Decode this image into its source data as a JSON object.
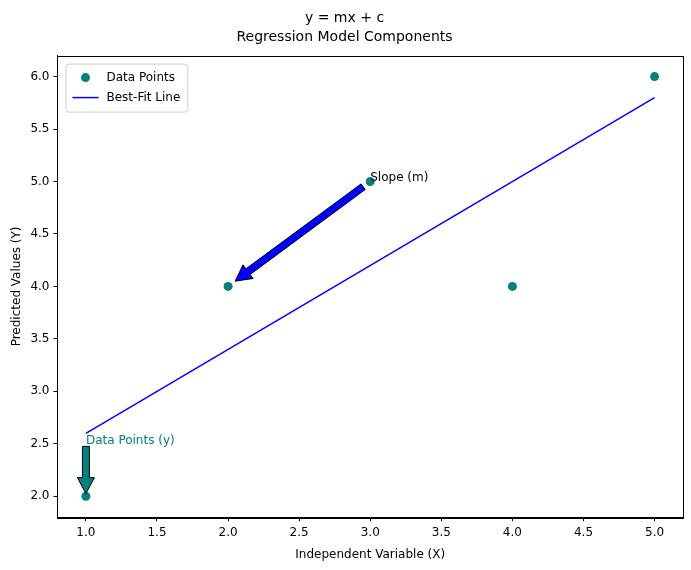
{
  "chart_data": {
    "type": "scatter",
    "title": "y = mx + c",
    "subtitle": "Regression Model Components",
    "x_label": "Independent Variable (X)",
    "y_label": "Predicted Values (Y)",
    "series": [
      {
        "name": "Data Points",
        "type": "scatter",
        "color": "#008080",
        "marker": "circle",
        "x": [
          1,
          2,
          3,
          4,
          5
        ],
        "values": [
          2,
          4,
          5,
          4,
          6
        ]
      },
      {
        "name": "Best-Fit Line",
        "type": "line",
        "color": "#0000ff",
        "line_style": "solid",
        "x": [
          1,
          5
        ],
        "values": [
          2.6,
          5.8
        ]
      }
    ],
    "xlim": [
      0.8,
      5.2
    ],
    "ylim": [
      1.8,
      6.2
    ],
    "xticks": [
      {
        "value": 1,
        "label": "1.0"
      },
      1.5,
      {
        "value": 2,
        "label": "2.0"
      },
      2.5,
      {
        "value": 3,
        "label": "3.0"
      },
      3.5,
      {
        "value": 4,
        "label": "4.0"
      },
      4.5,
      {
        "value": 5,
        "label": "5.0"
      }
    ],
    "yticks": [
      {
        "value": 2,
        "label": "2.0"
      },
      2.5,
      {
        "value": 3,
        "label": "3.0"
      },
      3.5,
      {
        "value": 4,
        "label": "4.0"
      },
      4.5,
      {
        "value": 5,
        "label": "5.0"
      },
      5.5,
      {
        "value": 6,
        "label": "6.0"
      }
    ],
    "grid": false,
    "legend": "upper left",
    "annotations": [
      {
        "text": "Slope (m)",
        "xy": [
          2,
          4
        ],
        "xytext": [
          3,
          5
        ],
        "color": "#0000ff",
        "text_color": "#000000"
      },
      {
        "text": "Data Points (y)",
        "xy": [
          1,
          2
        ],
        "xytext": [
          1,
          2.5
        ],
        "color": "#008080",
        "text_color": "#008080"
      }
    ]
  }
}
